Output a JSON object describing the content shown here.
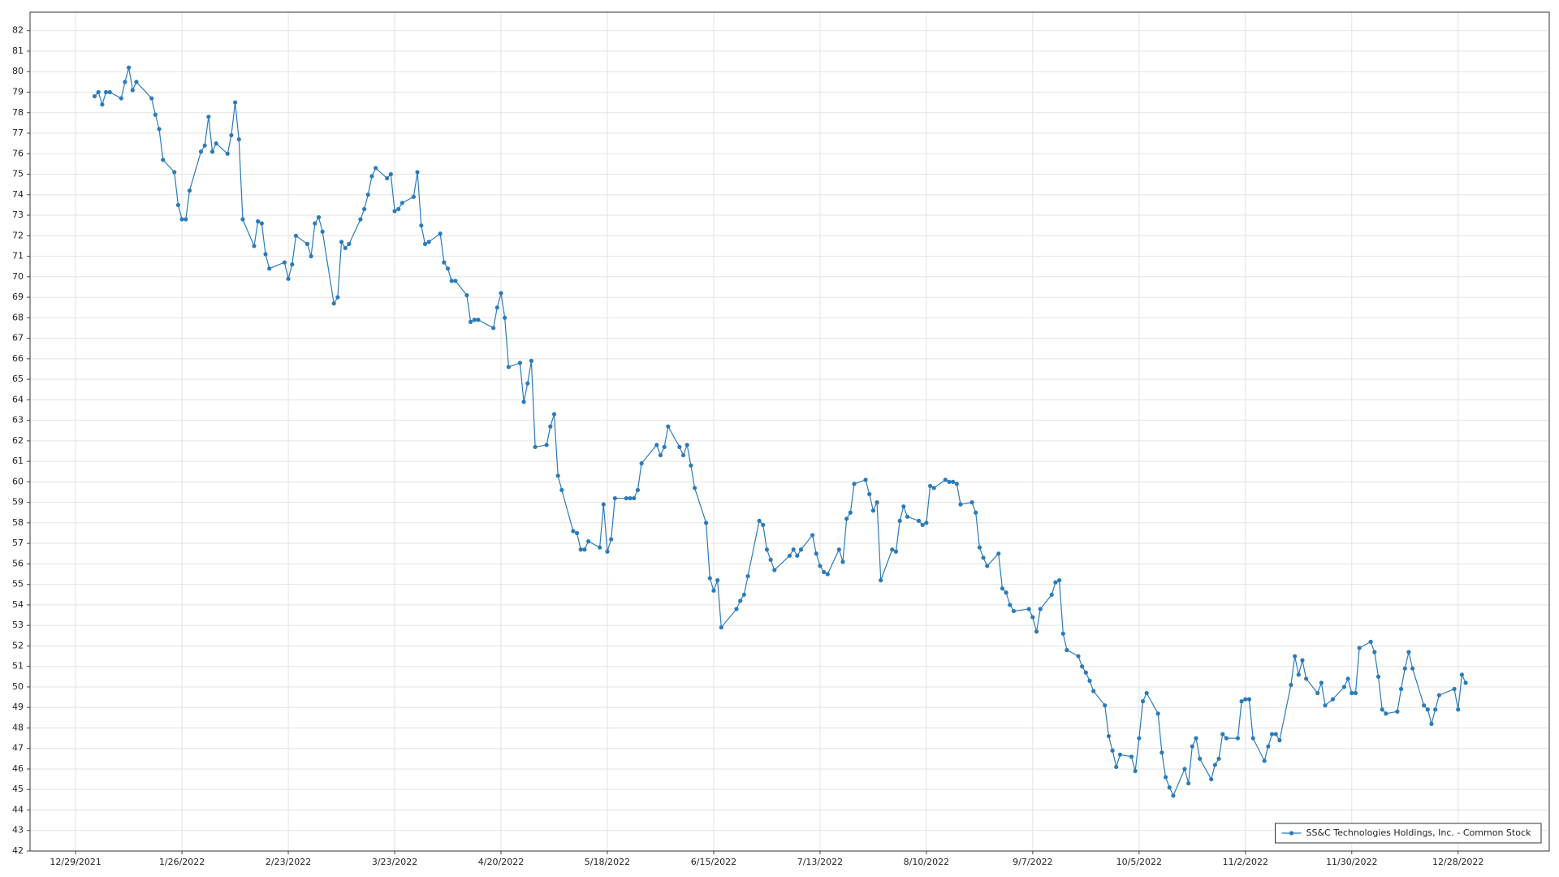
{
  "chart_data": {
    "type": "line",
    "x": [
      "1/3/2022",
      "1/4/2022",
      "1/5/2022",
      "1/6/2022",
      "1/7/2022",
      "1/10/2022",
      "1/11/2022",
      "1/12/2022",
      "1/13/2022",
      "1/14/2022",
      "1/18/2022",
      "1/19/2022",
      "1/20/2022",
      "1/21/2022",
      "1/24/2022",
      "1/25/2022",
      "1/26/2022",
      "1/27/2022",
      "1/28/2022",
      "1/31/2022",
      "2/1/2022",
      "2/2/2022",
      "2/3/2022",
      "2/4/2022",
      "2/7/2022",
      "2/8/2022",
      "2/9/2022",
      "2/10/2022",
      "2/11/2022",
      "2/14/2022",
      "2/15/2022",
      "2/16/2022",
      "2/17/2022",
      "2/18/2022",
      "2/22/2022",
      "2/23/2022",
      "2/24/2022",
      "2/25/2022",
      "2/28/2022",
      "3/1/2022",
      "3/2/2022",
      "3/3/2022",
      "3/4/2022",
      "3/7/2022",
      "3/8/2022",
      "3/9/2022",
      "3/10/2022",
      "3/11/2022",
      "3/14/2022",
      "3/15/2022",
      "3/16/2022",
      "3/17/2022",
      "3/18/2022",
      "3/21/2022",
      "3/22/2022",
      "3/23/2022",
      "3/24/2022",
      "3/25/2022",
      "3/28/2022",
      "3/29/2022",
      "3/30/2022",
      "3/31/2022",
      "4/1/2022",
      "4/4/2022",
      "4/5/2022",
      "4/6/2022",
      "4/7/2022",
      "4/8/2022",
      "4/11/2022",
      "4/12/2022",
      "4/13/2022",
      "4/14/2022",
      "4/18/2022",
      "4/19/2022",
      "4/20/2022",
      "4/21/2022",
      "4/22/2022",
      "4/25/2022",
      "4/26/2022",
      "4/27/2022",
      "4/28/2022",
      "4/29/2022",
      "5/2/2022",
      "5/3/2022",
      "5/4/2022",
      "5/5/2022",
      "5/6/2022",
      "5/9/2022",
      "5/10/2022",
      "5/11/2022",
      "5/12/2022",
      "5/13/2022",
      "5/16/2022",
      "5/17/2022",
      "5/18/2022",
      "5/19/2022",
      "5/20/2022",
      "5/23/2022",
      "5/24/2022",
      "5/25/2022",
      "5/26/2022",
      "5/27/2022",
      "5/31/2022",
      "6/1/2022",
      "6/2/2022",
      "6/3/2022",
      "6/6/2022",
      "6/7/2022",
      "6/8/2022",
      "6/9/2022",
      "6/10/2022",
      "6/13/2022",
      "6/14/2022",
      "6/15/2022",
      "6/16/2022",
      "6/17/2022",
      "6/21/2022",
      "6/22/2022",
      "6/23/2022",
      "6/24/2022",
      "6/27/2022",
      "6/28/2022",
      "6/29/2022",
      "6/30/2022",
      "7/1/2022",
      "7/5/2022",
      "7/6/2022",
      "7/7/2022",
      "7/8/2022",
      "7/11/2022",
      "7/12/2022",
      "7/13/2022",
      "7/14/2022",
      "7/15/2022",
      "7/18/2022",
      "7/19/2022",
      "7/20/2022",
      "7/21/2022",
      "7/22/2022",
      "7/25/2022",
      "7/26/2022",
      "7/27/2022",
      "7/28/2022",
      "7/29/2022",
      "8/1/2022",
      "8/2/2022",
      "8/3/2022",
      "8/4/2022",
      "8/5/2022",
      "8/8/2022",
      "8/9/2022",
      "8/10/2022",
      "8/11/2022",
      "8/12/2022",
      "8/15/2022",
      "8/16/2022",
      "8/17/2022",
      "8/18/2022",
      "8/19/2022",
      "8/22/2022",
      "8/23/2022",
      "8/24/2022",
      "8/25/2022",
      "8/26/2022",
      "8/29/2022",
      "8/30/2022",
      "8/31/2022",
      "9/1/2022",
      "9/2/2022",
      "9/6/2022",
      "9/7/2022",
      "9/8/2022",
      "9/9/2022",
      "9/12/2022",
      "9/13/2022",
      "9/14/2022",
      "9/15/2022",
      "9/16/2022",
      "9/19/2022",
      "9/20/2022",
      "9/21/2022",
      "9/22/2022",
      "9/23/2022",
      "9/26/2022",
      "9/27/2022",
      "9/28/2022",
      "9/29/2022",
      "9/30/2022",
      "10/3/2022",
      "10/4/2022",
      "10/5/2022",
      "10/6/2022",
      "10/7/2022",
      "10/10/2022",
      "10/11/2022",
      "10/12/2022",
      "10/13/2022",
      "10/14/2022",
      "10/17/2022",
      "10/18/2022",
      "10/19/2022",
      "10/20/2022",
      "10/21/2022",
      "10/24/2022",
      "10/25/2022",
      "10/26/2022",
      "10/27/2022",
      "10/28/2022",
      "10/31/2022",
      "11/1/2022",
      "11/2/2022",
      "11/3/2022",
      "11/4/2022",
      "11/7/2022",
      "11/8/2022",
      "11/9/2022",
      "11/10/2022",
      "11/11/2022",
      "11/14/2022",
      "11/15/2022",
      "11/16/2022",
      "11/17/2022",
      "11/18/2022",
      "11/21/2022",
      "11/22/2022",
      "11/23/2022",
      "11/25/2022",
      "11/28/2022",
      "11/29/2022",
      "11/30/2022",
      "12/1/2022",
      "12/2/2022",
      "12/5/2022",
      "12/6/2022",
      "12/7/2022",
      "12/8/2022",
      "12/9/2022",
      "12/12/2022",
      "12/13/2022",
      "12/14/2022",
      "12/15/2022",
      "12/16/2022",
      "12/19/2022",
      "12/20/2022",
      "12/21/2022",
      "12/22/2022",
      "12/23/2022",
      "12/27/2022",
      "12/28/2022",
      "12/29/2022",
      "12/30/2022"
    ],
    "series": [
      {
        "name": "SS&C Technologies Holdings, Inc. - Common Stock",
        "color": "#2b7bb9",
        "values": [
          78.8,
          79.0,
          78.4,
          79.0,
          79.0,
          78.7,
          79.5,
          80.2,
          79.1,
          79.5,
          78.7,
          77.9,
          77.2,
          75.7,
          75.1,
          73.5,
          72.8,
          72.8,
          74.2,
          76.1,
          76.4,
          77.8,
          76.1,
          76.5,
          76.0,
          76.9,
          78.5,
          76.7,
          72.8,
          71.5,
          72.7,
          72.6,
          71.1,
          70.4,
          70.7,
          69.9,
          70.6,
          72.0,
          71.6,
          71.0,
          72.6,
          72.9,
          72.2,
          68.7,
          69.0,
          71.7,
          71.4,
          71.6,
          72.8,
          73.3,
          74.0,
          74.9,
          75.3,
          74.8,
          75.0,
          73.2,
          73.3,
          73.6,
          73.9,
          75.1,
          72.5,
          71.6,
          71.7,
          72.1,
          70.7,
          70.4,
          69.8,
          69.8,
          69.1,
          67.8,
          67.9,
          67.9,
          67.5,
          68.5,
          69.2,
          68.0,
          65.6,
          65.8,
          63.9,
          64.8,
          65.9,
          61.7,
          61.8,
          62.7,
          63.3,
          60.3,
          59.6,
          57.6,
          57.5,
          56.7,
          56.7,
          57.1,
          56.8,
          58.9,
          56.6,
          57.2,
          59.2,
          59.2,
          59.2,
          59.2,
          59.6,
          60.9,
          61.8,
          61.3,
          61.7,
          62.7,
          61.7,
          61.3,
          61.8,
          60.8,
          59.7,
          58.0,
          55.3,
          54.7,
          55.2,
          52.9,
          53.8,
          54.2,
          54.5,
          55.4,
          58.1,
          57.9,
          56.7,
          56.2,
          55.7,
          56.4,
          56.7,
          56.4,
          56.7,
          57.4,
          56.5,
          55.9,
          55.6,
          55.5,
          56.7,
          56.1,
          58.2,
          58.5,
          59.9,
          60.1,
          59.4,
          58.6,
          59.0,
          55.2,
          56.7,
          56.6,
          58.1,
          58.8,
          58.3,
          58.1,
          57.9,
          58.0,
          59.8,
          59.7,
          60.1,
          60.0,
          60.0,
          59.9,
          58.9,
          59.0,
          58.5,
          56.8,
          56.3,
          55.9,
          56.5,
          54.8,
          54.6,
          54.0,
          53.7,
          53.8,
          53.4,
          52.7,
          53.8,
          54.5,
          55.1,
          55.2,
          52.6,
          51.8,
          51.5,
          51.0,
          50.7,
          50.3,
          49.8,
          49.1,
          47.6,
          46.9,
          46.1,
          46.7,
          46.6,
          45.9,
          47.5,
          49.3,
          49.7,
          48.7,
          46.8,
          45.6,
          45.1,
          44.7,
          46.0,
          45.3,
          47.1,
          47.5,
          46.5,
          45.5,
          46.2,
          46.5,
          47.7,
          47.5,
          47.5,
          49.3,
          49.4,
          49.4,
          47.5,
          46.4,
          47.1,
          47.7,
          47.7,
          47.4,
          50.1,
          51.5,
          50.6,
          51.3,
          50.4,
          49.7,
          50.2,
          49.1,
          49.4,
          50.0,
          50.4,
          49.7,
          49.7,
          51.9,
          52.2,
          51.7,
          50.5,
          48.9,
          48.7,
          48.8,
          49.9,
          50.9,
          51.7,
          50.9,
          49.1,
          48.9,
          48.2,
          48.9,
          49.6,
          49.9,
          48.9,
          50.6,
          50.2
        ]
      }
    ],
    "xlim": [
      "12/17/2021",
      "1/21/2023"
    ],
    "xticks": [
      "12/29/2021",
      "1/26/2022",
      "2/23/2022",
      "3/23/2022",
      "4/20/2022",
      "5/18/2022",
      "6/15/2022",
      "7/13/2022",
      "8/10/2022",
      "9/7/2022",
      "10/5/2022",
      "11/2/2022",
      "11/30/2022",
      "12/28/2022"
    ],
    "ylim": [
      42,
      82.9
    ],
    "yticks": [
      42,
      43,
      44,
      45,
      46,
      47,
      48,
      49,
      50,
      51,
      52,
      53,
      54,
      55,
      56,
      57,
      58,
      59,
      60,
      61,
      62,
      63,
      64,
      65,
      66,
      67,
      68,
      69,
      70,
      71,
      72,
      73,
      74,
      75,
      76,
      77,
      78,
      79,
      80,
      81,
      82
    ],
    "grid": true,
    "legend": "lower right"
  }
}
